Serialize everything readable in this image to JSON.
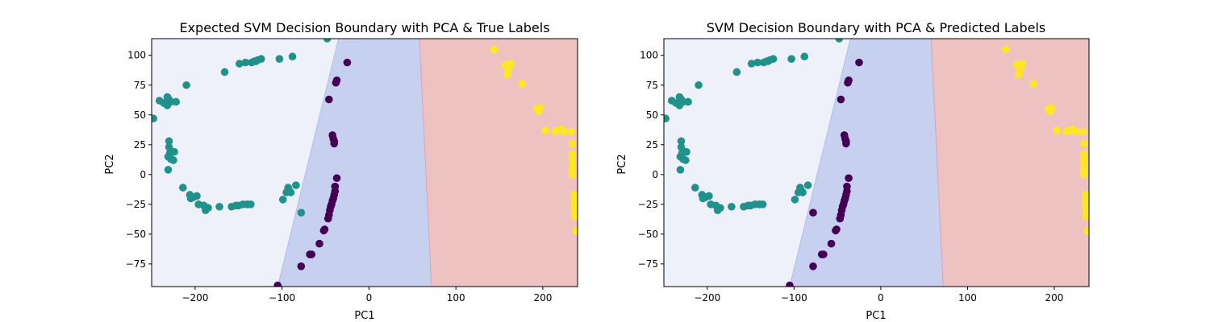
{
  "colors": {
    "region_left": "#eef1f9",
    "region_middle": "#c8d0f0",
    "region_right": "#efc2c2",
    "class_0": "#440154",
    "class_1": "#21918c",
    "class_2": "#fde725"
  },
  "chart_data": [
    {
      "type": "scatter",
      "title": "Expected SVM Decision Boundary with PCA & True Labels",
      "xlabel": "PC1",
      "ylabel": "PC2",
      "xlim": [
        -250,
        240
      ],
      "ylim": [
        -94,
        114
      ],
      "xticks": [
        -200,
        -100,
        0,
        100,
        200
      ],
      "yticks": [
        -75,
        -50,
        -25,
        0,
        25,
        50,
        75,
        100
      ],
      "grid": false,
      "boundaries": [
        {
          "top": [
            -35,
            114
          ],
          "bottom": [
            -105,
            -94
          ]
        },
        {
          "top": [
            58,
            114
          ],
          "bottom": [
            72,
            -94
          ]
        }
      ],
      "series": [
        {
          "class": "0",
          "color_key": "class_0",
          "points": [
            [
              -105,
              -93
            ],
            [
              -78,
              -77
            ],
            [
              -68,
              -67
            ],
            [
              -66,
              -67
            ],
            [
              -57,
              -58
            ],
            [
              -52,
              -47
            ],
            [
              -51,
              -46
            ],
            [
              -47,
              -37
            ],
            [
              -46,
              -34
            ],
            [
              -45,
              -30
            ],
            [
              -44,
              -27
            ],
            [
              -43,
              -25
            ],
            [
              -42,
              -22
            ],
            [
              -41,
              -20
            ],
            [
              -40,
              -17
            ],
            [
              -39,
              -14
            ],
            [
              -39,
              -10
            ],
            [
              -37,
              -3
            ],
            [
              -42,
              33
            ],
            [
              -41,
              30
            ],
            [
              -40,
              28
            ],
            [
              -40,
              26
            ],
            [
              -38,
              77
            ],
            [
              -37,
              79
            ],
            [
              -46,
              63
            ],
            [
              -25,
              94
            ]
          ]
        },
        {
          "class": "1",
          "color_key": "class_1",
          "points": [
            [
              -248,
              47
            ],
            [
              -241,
              62
            ],
            [
              -236,
              60
            ],
            [
              -232,
              58
            ],
            [
              -230,
              63
            ],
            [
              -228,
              61
            ],
            [
              -232,
              65
            ],
            [
              -222,
              61
            ],
            [
              -230,
              28
            ],
            [
              -230,
              23
            ],
            [
              -229,
              18
            ],
            [
              -231,
              15
            ],
            [
              -228,
              13
            ],
            [
              -224,
              19
            ],
            [
              -225,
              12
            ],
            [
              -231,
              4
            ],
            [
              -210,
              75
            ],
            [
              -166,
              86
            ],
            [
              -149,
              93
            ],
            [
              -142,
              94
            ],
            [
              -135,
              94
            ],
            [
              -132,
              95
            ],
            [
              -130,
              95
            ],
            [
              -128,
              96
            ],
            [
              -124,
              97
            ],
            [
              -103,
              97
            ],
            [
              -88,
              99
            ],
            [
              -48,
              114
            ],
            [
              -214,
              -11
            ],
            [
              -206,
              -17
            ],
            [
              -202,
              -19
            ],
            [
              -205,
              -20
            ],
            [
              -198,
              -18
            ],
            [
              -196,
              -25
            ],
            [
              -190,
              -26
            ],
            [
              -185,
              -28
            ],
            [
              -188,
              -30
            ],
            [
              -172,
              -27
            ],
            [
              -158,
              -27
            ],
            [
              -153,
              -26
            ],
            [
              -150,
              -26
            ],
            [
              -145,
              -25
            ],
            [
              -140,
              -25
            ],
            [
              -136,
              -25
            ],
            [
              -99,
              -21
            ],
            [
              -95,
              -15
            ],
            [
              -92,
              -13
            ],
            [
              -93,
              -11
            ],
            [
              -90,
              -15
            ],
            [
              -84,
              -9
            ],
            [
              -78,
              -32
            ]
          ]
        },
        {
          "class": "2",
          "color_key": "class_2",
          "points": [
            [
              144,
              105
            ],
            [
              157,
              92
            ],
            [
              159,
              90
            ],
            [
              161,
              89
            ],
            [
              159,
              84
            ],
            [
              163,
              93
            ],
            [
              176,
              76
            ],
            [
              193,
              55
            ],
            [
              195,
              53
            ],
            [
              197,
              56
            ],
            [
              203,
              37
            ],
            [
              214,
              36
            ],
            [
              216,
              37
            ],
            [
              221,
              38
            ],
            [
              225,
              36
            ],
            [
              233,
              36
            ],
            [
              234,
              26
            ],
            [
              234,
              17
            ],
            [
              234,
              13
            ],
            [
              234,
              9
            ],
            [
              234,
              5
            ],
            [
              234,
              2
            ],
            [
              234,
              0
            ],
            [
              236,
              -17
            ],
            [
              236,
              -21
            ],
            [
              236,
              -25
            ],
            [
              237,
              -28
            ],
            [
              237,
              -31
            ],
            [
              237,
              -35
            ],
            [
              238,
              -47
            ]
          ]
        }
      ]
    },
    {
      "type": "scatter",
      "title": "SVM Decision Boundary with PCA & Predicted Labels",
      "xlabel": "PC1",
      "ylabel": "PC2",
      "xlim": [
        -250,
        240
      ],
      "ylim": [
        -94,
        114
      ],
      "xticks": [
        -200,
        -100,
        0,
        100,
        200
      ],
      "yticks": [
        -75,
        -50,
        -25,
        0,
        25,
        50,
        75,
        100
      ],
      "grid": false,
      "boundaries": [
        {
          "top": [
            -35,
            114
          ],
          "bottom": [
            -105,
            -94
          ]
        },
        {
          "top": [
            58,
            114
          ],
          "bottom": [
            72,
            -94
          ]
        }
      ],
      "series": [
        {
          "class": "0",
          "color_key": "class_0",
          "points": [
            [
              -105,
              -93
            ],
            [
              -78,
              -77
            ],
            [
              -68,
              -67
            ],
            [
              -66,
              -67
            ],
            [
              -57,
              -58
            ],
            [
              -52,
              -47
            ],
            [
              -51,
              -46
            ],
            [
              -47,
              -37
            ],
            [
              -46,
              -34
            ],
            [
              -45,
              -30
            ],
            [
              -44,
              -27
            ],
            [
              -43,
              -25
            ],
            [
              -42,
              -22
            ],
            [
              -41,
              -20
            ],
            [
              -40,
              -17
            ],
            [
              -39,
              -14
            ],
            [
              -39,
              -10
            ],
            [
              -37,
              -3
            ],
            [
              -42,
              33
            ],
            [
              -41,
              30
            ],
            [
              -40,
              28
            ],
            [
              -40,
              26
            ],
            [
              -38,
              77
            ],
            [
              -37,
              79
            ],
            [
              -46,
              63
            ],
            [
              -25,
              94
            ],
            [
              -78,
              -32
            ]
          ]
        },
        {
          "class": "1",
          "color_key": "class_1",
          "points": [
            [
              -248,
              47
            ],
            [
              -241,
              62
            ],
            [
              -236,
              60
            ],
            [
              -232,
              58
            ],
            [
              -230,
              63
            ],
            [
              -228,
              61
            ],
            [
              -232,
              65
            ],
            [
              -222,
              61
            ],
            [
              -230,
              28
            ],
            [
              -230,
              23
            ],
            [
              -229,
              18
            ],
            [
              -231,
              15
            ],
            [
              -228,
              13
            ],
            [
              -224,
              19
            ],
            [
              -225,
              12
            ],
            [
              -231,
              4
            ],
            [
              -210,
              75
            ],
            [
              -166,
              86
            ],
            [
              -149,
              93
            ],
            [
              -142,
              94
            ],
            [
              -135,
              94
            ],
            [
              -132,
              95
            ],
            [
              -130,
              95
            ],
            [
              -128,
              96
            ],
            [
              -124,
              97
            ],
            [
              -103,
              97
            ],
            [
              -88,
              99
            ],
            [
              -48,
              114
            ],
            [
              -214,
              -11
            ],
            [
              -206,
              -17
            ],
            [
              -202,
              -19
            ],
            [
              -205,
              -20
            ],
            [
              -198,
              -18
            ],
            [
              -196,
              -25
            ],
            [
              -190,
              -26
            ],
            [
              -185,
              -28
            ],
            [
              -188,
              -30
            ],
            [
              -172,
              -27
            ],
            [
              -158,
              -27
            ],
            [
              -153,
              -26
            ],
            [
              -150,
              -26
            ],
            [
              -145,
              -25
            ],
            [
              -140,
              -25
            ],
            [
              -136,
              -25
            ],
            [
              -99,
              -21
            ],
            [
              -95,
              -15
            ],
            [
              -92,
              -13
            ],
            [
              -93,
              -11
            ],
            [
              -90,
              -15
            ],
            [
              -84,
              -9
            ]
          ]
        },
        {
          "class": "2",
          "color_key": "class_2",
          "points": [
            [
              144,
              105
            ],
            [
              157,
              92
            ],
            [
              159,
              90
            ],
            [
              161,
              89
            ],
            [
              159,
              84
            ],
            [
              163,
              93
            ],
            [
              176,
              76
            ],
            [
              193,
              55
            ],
            [
              195,
              53
            ],
            [
              197,
              56
            ],
            [
              203,
              37
            ],
            [
              214,
              36
            ],
            [
              216,
              37
            ],
            [
              221,
              38
            ],
            [
              225,
              36
            ],
            [
              233,
              36
            ],
            [
              234,
              26
            ],
            [
              234,
              17
            ],
            [
              234,
              13
            ],
            [
              234,
              9
            ],
            [
              234,
              5
            ],
            [
              234,
              2
            ],
            [
              234,
              0
            ],
            [
              236,
              -17
            ],
            [
              236,
              -21
            ],
            [
              236,
              -25
            ],
            [
              237,
              -28
            ],
            [
              237,
              -31
            ],
            [
              237,
              -35
            ],
            [
              238,
              -47
            ]
          ]
        }
      ]
    }
  ]
}
